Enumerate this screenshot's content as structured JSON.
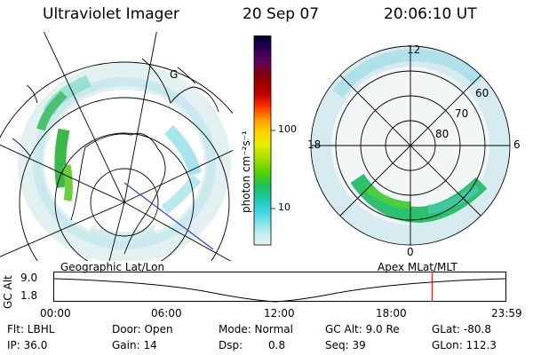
{
  "header": {
    "title": "Ultraviolet Imager",
    "date": "20 Sep 07",
    "time": "20:06:10 UT"
  },
  "left_map": {
    "caption": "Geographic Lat/Lon",
    "geo_label": "G"
  },
  "right_map": {
    "caption": "Apex MLat/MLT",
    "mlt_labels": {
      "top": "12",
      "left": "18",
      "right": "6",
      "bottom": "0"
    },
    "lat_labels": [
      "60",
      "70",
      "80"
    ]
  },
  "colorbar": {
    "unit_label": "photon cm⁻²s⁻¹",
    "tick_100": "100",
    "tick_10": "10",
    "colors": [
      "#000033",
      "#2a0050",
      "#5a0060",
      "#8a0000",
      "#c00000",
      "#ff3000",
      "#ff9a00",
      "#ffd000",
      "#e6f000",
      "#b0e000",
      "#5cd000",
      "#20c060",
      "#20c8b0",
      "#40d4e0",
      "#8ae4ea",
      "#c6eef0",
      "#e8f4f4"
    ]
  },
  "timeline": {
    "ylabel": "GC Alt",
    "y_top": "9.0",
    "y_bottom": "1.8",
    "x_ticks": [
      "00:00",
      "06:00",
      "12:00",
      "18:00",
      "23:59"
    ],
    "marker_hour": 20.1
  },
  "footer": {
    "flt": "Flt: LBHL",
    "ip": "IP: 36.0",
    "door": "Door: Open",
    "gain": "Gain: 14",
    "mode": "Mode: Normal",
    "dsp_label": "Dsp:",
    "dsp_value": "0.8",
    "gcalt": "GC Alt: 9.0 Re",
    "seq": "Seq: 39",
    "glat": "GLat: -80.8",
    "glon": "GLon: 112.3"
  }
}
